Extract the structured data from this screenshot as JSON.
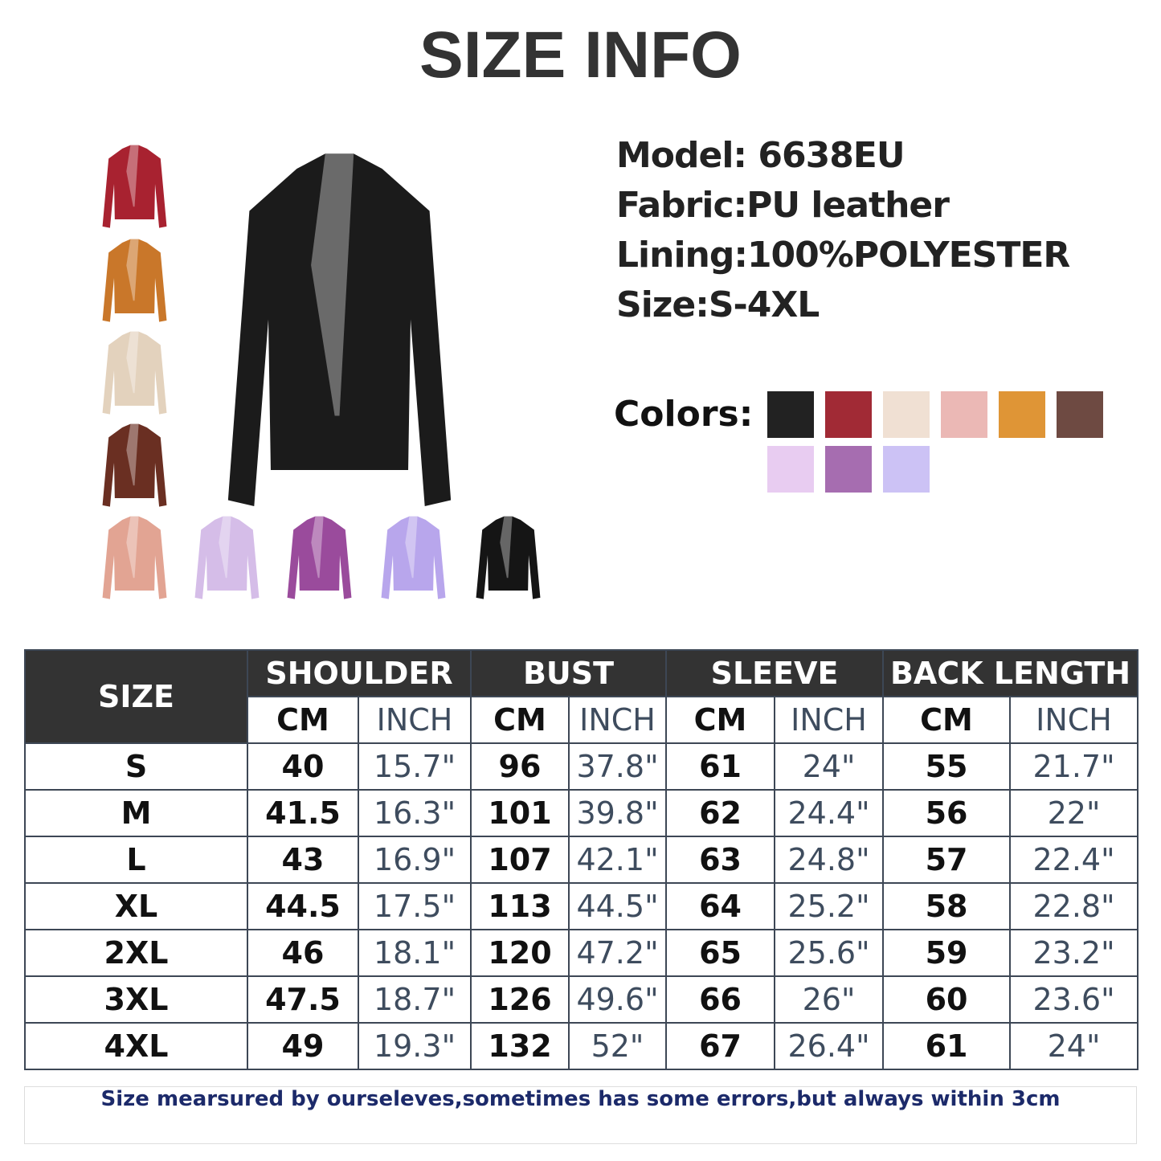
{
  "header": {
    "title": "SIZE INFO"
  },
  "specs": [
    "Model: 6638EU",
    "Fabric:PU leather",
    "Lining:100%POLYESTER",
    "Size:S-4XL"
  ],
  "colors": {
    "label": "Colors:",
    "swatches": [
      "#222222",
      "#a12a35",
      "#f0e0d3",
      "#ebb8b5",
      "#df9536",
      "#6e4a42",
      "#e8ccf1",
      "#a66db0",
      "#ccc2f5"
    ]
  },
  "table": {
    "size_header": "SIZE",
    "groups": [
      "SHOULDER",
      "BUST",
      "SLEEVE",
      "BACK LENGTH"
    ],
    "units": [
      "CM",
      "INCH",
      "CM",
      "INCH",
      "CM",
      "INCH",
      "CM",
      "INCH"
    ],
    "rows": [
      [
        "S",
        "40",
        "15.7\"",
        "96",
        "37.8\"",
        "61",
        "24\"",
        "55",
        "21.7\""
      ],
      [
        "M",
        "41.5",
        "16.3\"",
        "101",
        "39.8\"",
        "62",
        "24.4\"",
        "56",
        "22\""
      ],
      [
        "L",
        "43",
        "16.9\"",
        "107",
        "42.1\"",
        "63",
        "24.8\"",
        "57",
        "22.4\""
      ],
      [
        "XL",
        "44.5",
        "17.5\"",
        "113",
        "44.5\"",
        "64",
        "25.2\"",
        "58",
        "22.8\""
      ],
      [
        "2XL",
        "46",
        "18.1\"",
        "120",
        "47.2\"",
        "65",
        "25.6\"",
        "59",
        "23.2\""
      ],
      [
        "3XL",
        "47.5",
        "18.7\"",
        "126",
        "49.6\"",
        "66",
        "26\"",
        "60",
        "23.6\""
      ],
      [
        "4XL",
        "49",
        "19.3\"",
        "132",
        "52\"",
        "67",
        "26.4\"",
        "61",
        "24\""
      ]
    ]
  },
  "note": "Size mearsured by ourseleves,sometimes has some errors,but always within 3cm"
}
